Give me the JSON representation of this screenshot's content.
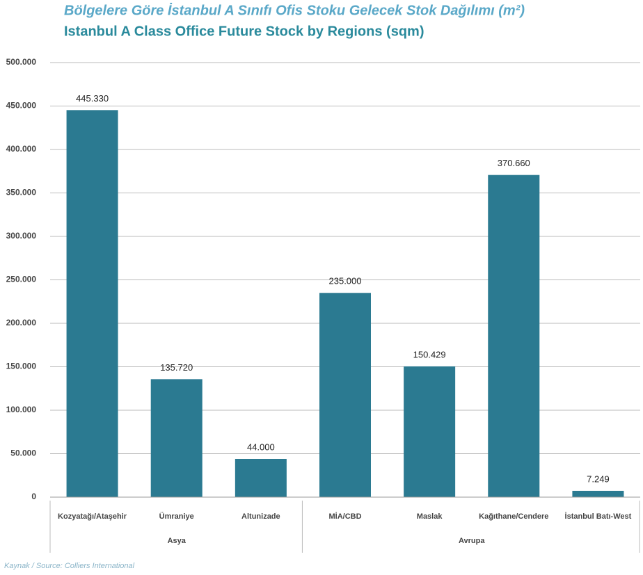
{
  "chart_data": {
    "type": "bar",
    "title": "Bölgelere Göre İstanbul A Sınıfı Ofis Stoku Gelecek Stok Dağılımı (m²)",
    "subtitle": "Istanbul A Class Office Future Stock by Regions (sqm)",
    "categories": [
      "Kozyatağı/Ataşehir",
      "Ümraniye",
      "Altunizade",
      "MİA/CBD",
      "Maslak",
      "Kağıthane/Cendere",
      "İstanbul Batı-West"
    ],
    "values": [
      445330,
      135720,
      44000,
      235000,
      150429,
      370660,
      7249
    ],
    "value_labels": [
      "445.330",
      "135.720",
      "44.000",
      "235.000",
      "150.429",
      "370.660",
      "7.249"
    ],
    "groups": [
      {
        "name": "Asya",
        "span": 3
      },
      {
        "name": "Avrupa",
        "span": 4
      }
    ],
    "color": "#2b7a91",
    "ylim": [
      0,
      500000
    ],
    "yticks": [
      0,
      {
        "value": 50000,
        "label": "50.000"
      },
      {
        "value": 100000,
        "label": "100.000"
      },
      {
        "value": 150000,
        "label": "150.000"
      },
      {
        "value": 200000,
        "label": "200.000"
      },
      {
        "value": 250000,
        "label": "250.000"
      },
      {
        "value": 300000,
        "label": "300.000"
      },
      {
        "value": 350000,
        "label": "350.000"
      },
      {
        "value": 400000,
        "label": "400.000"
      },
      {
        "value": 450000,
        "label": "450.000"
      },
      {
        "value": 500000,
        "label": "500.000"
      }
    ],
    "grid": true,
    "source": "Kaynak / Source: Colliers International"
  }
}
